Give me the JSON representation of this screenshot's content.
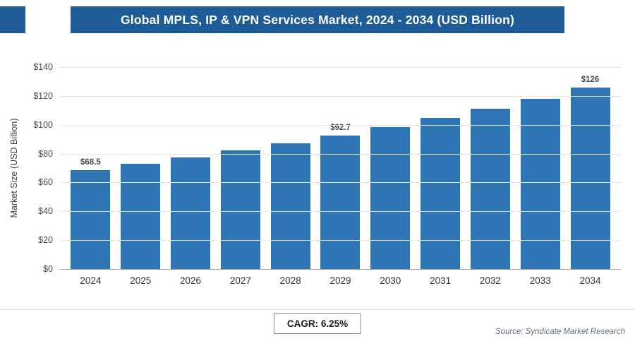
{
  "header": {
    "accent_color": "#1d5c96"
  },
  "chart_data": {
    "type": "bar",
    "title": "Global MPLS, IP & VPN Services Market, 2024 - 2034 (USD Billion)",
    "ylabel": "Market Size (USD Billion)",
    "categories": [
      "2024",
      "2025",
      "2026",
      "2027",
      "2028",
      "2029",
      "2030",
      "2031",
      "2032",
      "2033",
      "2034"
    ],
    "values": [
      68.5,
      72.8,
      77.3,
      82.2,
      87.3,
      92.7,
      98.5,
      104.7,
      111.2,
      118.2,
      126
    ],
    "value_labels": [
      "$68.5",
      "",
      "",
      "",
      "",
      "$92.7",
      "",
      "",
      "",
      "",
      "$126"
    ],
    "ylim": [
      0,
      140
    ],
    "ytick_values": [
      0,
      20,
      40,
      60,
      80,
      100,
      120,
      140
    ],
    "ytick_labels": [
      "$0",
      "$20",
      "$40",
      "$60",
      "$80",
      "$100",
      "$120",
      "$140"
    ],
    "bar_color": "#2e75b6",
    "grid": true,
    "legend": "none"
  },
  "footer": {
    "cagr": "CAGR: 6.25%",
    "source": "Source: Syndicate Market Research"
  }
}
